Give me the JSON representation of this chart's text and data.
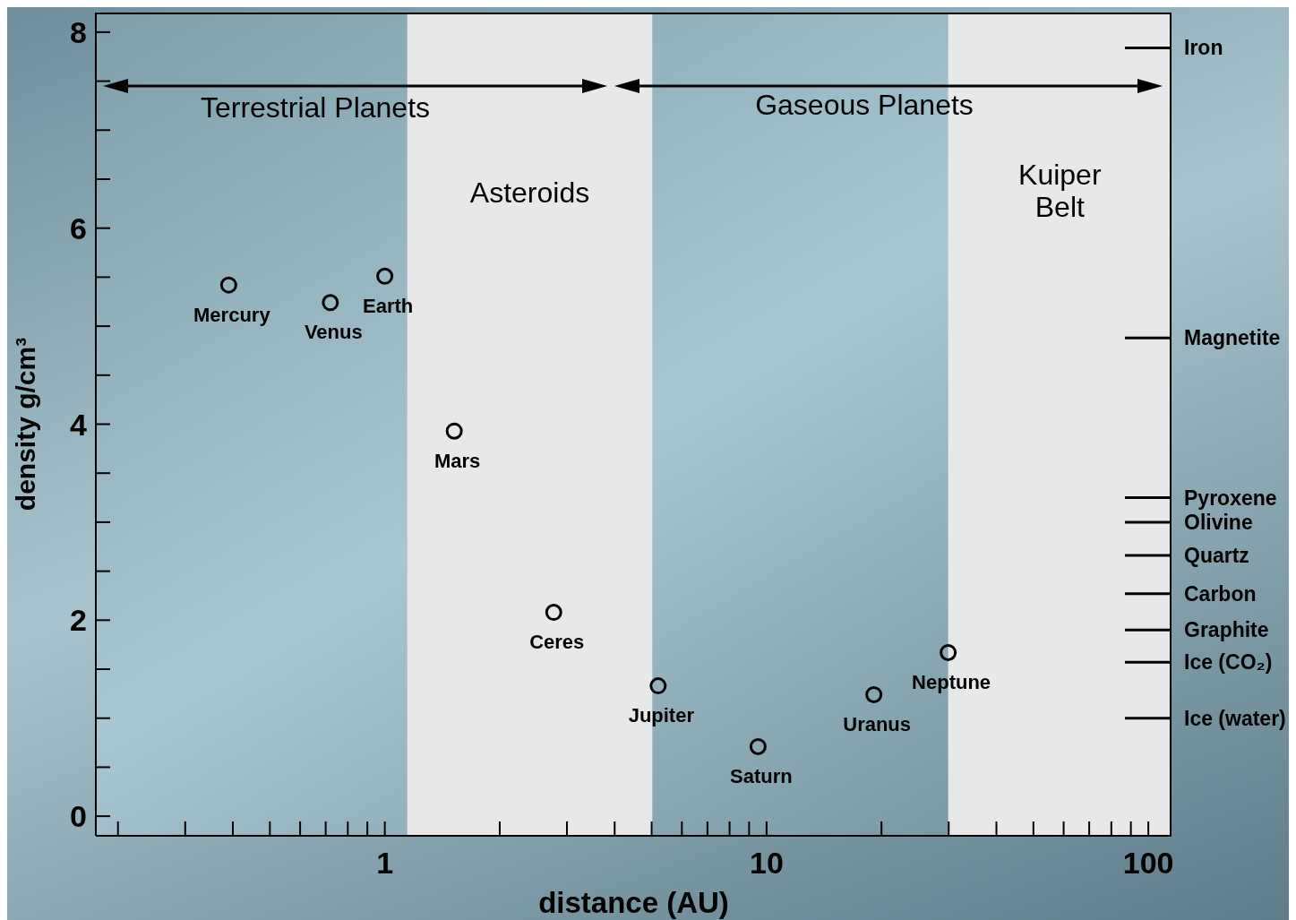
{
  "chart_data": {
    "type": "scatter",
    "xlabel": "distance (AU)",
    "ylabel": "density g/cm³",
    "log": "x",
    "marker": "circle",
    "xlim": [
      0.175,
      115
    ],
    "xticks": [
      {
        "value": 0.2,
        "label": null
      },
      {
        "value": 0.3,
        "label": null
      },
      {
        "value": 0.4,
        "label": null
      },
      {
        "value": 0.5,
        "label": null
      },
      {
        "value": 0.6,
        "label": null
      },
      {
        "value": 0.7,
        "label": null
      },
      {
        "value": 0.8,
        "label": null
      },
      {
        "value": 0.9,
        "label": null
      },
      1,
      {
        "value": 2,
        "label": null
      },
      {
        "value": 3,
        "label": null
      },
      {
        "value": 4,
        "label": null
      },
      {
        "value": 5,
        "label": null
      },
      {
        "value": 6,
        "label": null
      },
      {
        "value": 7,
        "label": null
      },
      {
        "value": 8,
        "label": null
      },
      {
        "value": 9,
        "label": null
      },
      10,
      {
        "value": 20,
        "label": null
      },
      {
        "value": 30,
        "label": null
      },
      {
        "value": 40,
        "label": null
      },
      {
        "value": 50,
        "label": null
      },
      {
        "value": 60,
        "label": null
      },
      {
        "value": 70,
        "label": null
      },
      {
        "value": 80,
        "label": null
      },
      {
        "value": 90,
        "label": null
      },
      100
    ],
    "ylim": [
      -0.2,
      8.2
    ],
    "yticks": [
      0,
      {
        "value": 0.5,
        "label": null
      },
      {
        "value": 1,
        "label": null
      },
      {
        "value": 1.5,
        "label": null
      },
      2,
      {
        "value": 2.5,
        "label": null
      },
      {
        "value": 3,
        "label": null
      },
      {
        "value": 3.5,
        "label": null
      },
      4,
      {
        "value": 4.5,
        "label": null
      },
      {
        "value": 5,
        "label": null
      },
      {
        "value": 5.5,
        "label": null
      },
      6,
      {
        "value": 6.5,
        "label": null
      },
      {
        "value": 7,
        "label": null
      },
      {
        "value": 7.5,
        "label": null
      },
      8
    ],
    "ref_lines": [
      {
        "axis": "y",
        "value": 7.84,
        "label": "Iron"
      },
      {
        "axis": "y",
        "value": 4.88,
        "label": "Magnetite"
      },
      {
        "axis": "y",
        "value": 3.25,
        "label": "Pyroxene"
      },
      {
        "axis": "y",
        "value": 3.0,
        "label": "Olivine"
      },
      {
        "axis": "y",
        "value": 2.66,
        "label": "Quartz"
      },
      {
        "axis": "y",
        "value": 2.27,
        "label": "Carbon"
      },
      {
        "axis": "y",
        "value": 1.9,
        "label": "Graphite"
      },
      {
        "axis": "y",
        "value": 1.57,
        "label": "Ice (CO₂)"
      },
      {
        "axis": "y",
        "value": 1.0,
        "label": "Ice (water)"
      }
    ],
    "series": [
      {
        "name": "Mercury",
        "color": "#000000",
        "x": [
          0.39
        ],
        "values": [
          5.42
        ]
      },
      {
        "name": "Venus",
        "color": "#000000",
        "x": [
          0.72
        ],
        "values": [
          5.24
        ]
      },
      {
        "name": "Earth",
        "color": "#000000",
        "x": [
          1.0
        ],
        "values": [
          5.51
        ]
      },
      {
        "name": "Mars",
        "color": "#000000",
        "x": [
          1.52
        ],
        "values": [
          3.93
        ]
      },
      {
        "name": "Ceres",
        "color": "#000000",
        "x": [
          2.77
        ],
        "values": [
          2.08
        ]
      },
      {
        "name": "Jupiter",
        "color": "#000000",
        "x": [
          5.2
        ],
        "values": [
          1.33
        ]
      },
      {
        "name": "Saturn",
        "color": "#000000",
        "x": [
          9.5
        ],
        "values": [
          0.71
        ]
      },
      {
        "name": "Uranus",
        "color": "#000000",
        "x": [
          19.1
        ],
        "values": [
          1.24
        ]
      },
      {
        "name": "Neptune",
        "color": "#000000",
        "x": [
          29.9
        ],
        "values": [
          1.67
        ]
      }
    ],
    "bands": [
      {
        "axis": "x",
        "from": 1.145,
        "to": 5.02,
        "label": "Asteroids",
        "color": "#e7e8ea"
      },
      {
        "axis": "x",
        "from": 29.9,
        "to": 115,
        "label": "Kuiper Belt",
        "color": "#e7e8ea"
      }
    ],
    "annotations": [
      "Terrestrial Planets",
      "Gaseous Planets"
    ]
  }
}
